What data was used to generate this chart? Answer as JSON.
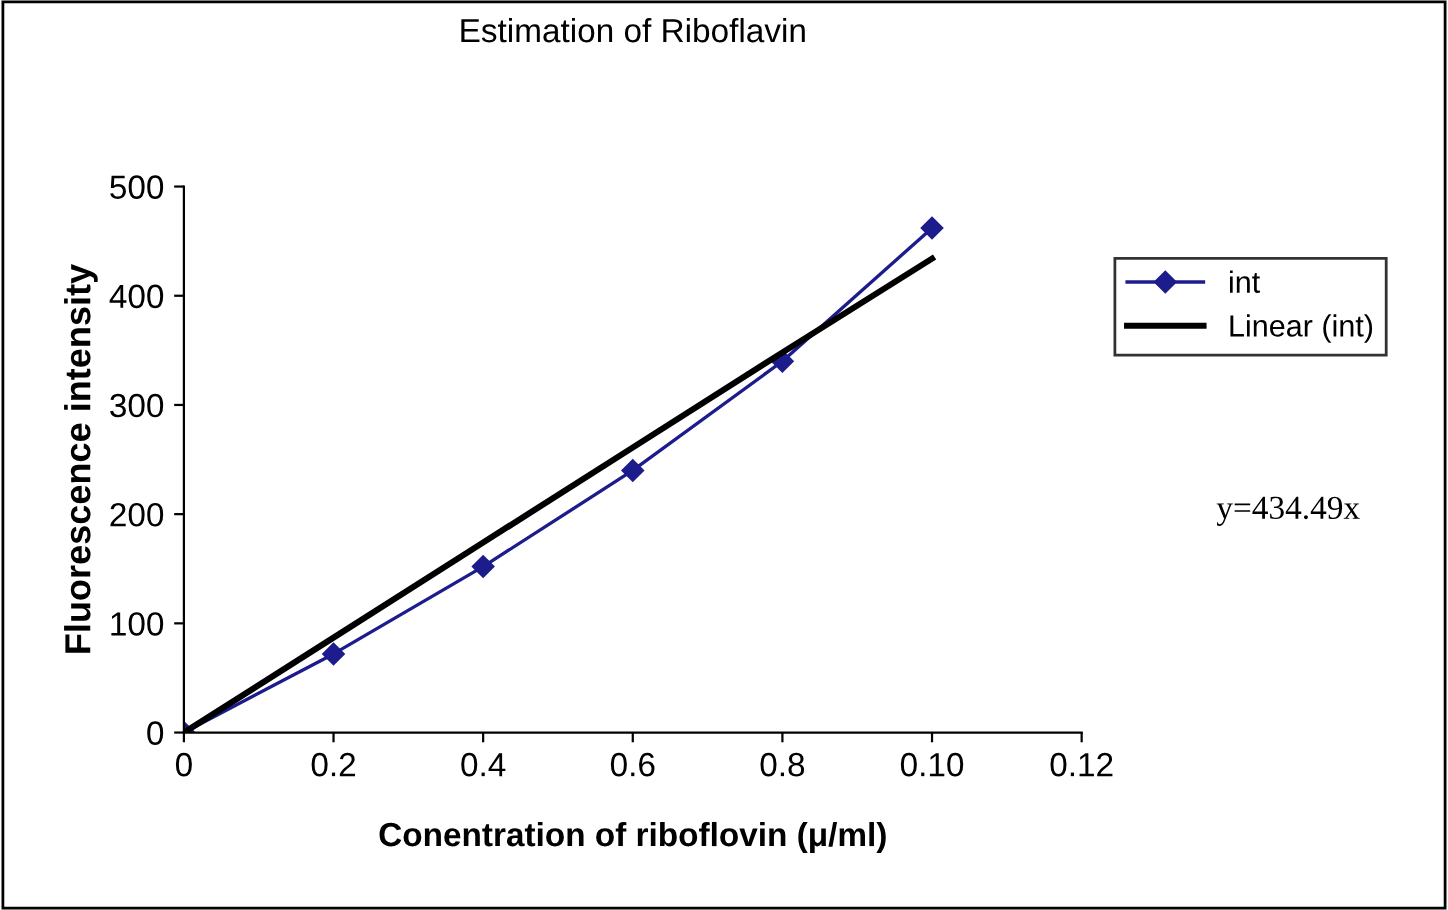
{
  "chart_data": {
    "type": "line",
    "title": "Estimation of Riboflavin",
    "xlabel": "Conentration of riboflovin (μ/ml)",
    "ylabel": "Fluorescence intensity",
    "categories": [
      "0",
      "0.2",
      "0.4",
      "0.6",
      "0.8",
      "0.10",
      "0.12"
    ],
    "series": [
      {
        "name": "int",
        "color": "#1c1c8c",
        "values": [
          0,
          72,
          152,
          240,
          340,
          462,
          null
        ],
        "marker": "diamond"
      },
      {
        "name": "Linear (int)",
        "color": "#000000",
        "values": [
          0,
          87,
          174,
          261,
          348,
          434,
          null
        ],
        "marker": "none"
      }
    ],
    "ylim": [
      0,
      500
    ],
    "yticks": [
      0,
      100,
      200,
      300,
      400,
      500
    ],
    "grid": false,
    "legend": "right",
    "annotations": [
      "y=434.49x"
    ]
  }
}
